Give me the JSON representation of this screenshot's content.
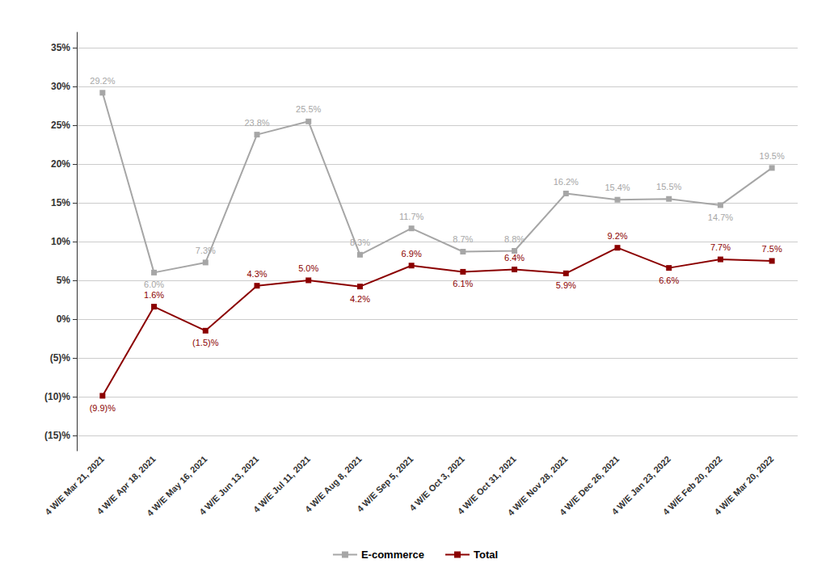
{
  "chart_data": {
    "type": "line",
    "categories": [
      "4 W/E Mar 21, 2021",
      "4 W/E Apr 18, 2021",
      "4 W/E May 16, 2021",
      "4 W/E Jun 13, 2021",
      "4 W/E Jul 11, 2021",
      "4 W/E Aug 8, 2021",
      "4 W/E Sep 5, 2021",
      "4 W/E Oct 3, 2021",
      "4 W/E Oct 31, 2021",
      "4 W/E Nov 28, 2021",
      "4 W/E Dec 26, 2021",
      "4 W/E Jan 23, 2022",
      "4 W/E Feb 20, 2022",
      "4 W/E Mar 20, 2022"
    ],
    "series": [
      {
        "name": "E-commerce",
        "color": "#a6a6a6",
        "marker": "square",
        "values": [
          29.2,
          6.0,
          7.3,
          23.8,
          25.5,
          8.3,
          11.7,
          8.7,
          8.8,
          16.2,
          15.4,
          15.5,
          14.7,
          19.5
        ],
        "value_labels": [
          "29.2%",
          "6.0%",
          "7.3%",
          "23.8%",
          "25.5%",
          "8.3%",
          "11.7%",
          "8.7%",
          "8.8%",
          "16.2%",
          "15.4%",
          "15.5%",
          "14.7%",
          "19.5%"
        ]
      },
      {
        "name": "Total",
        "color": "#8b0000",
        "marker": "square",
        "values": [
          -9.9,
          1.6,
          -1.5,
          4.3,
          5.0,
          4.2,
          6.9,
          6.1,
          6.4,
          5.9,
          9.2,
          6.6,
          7.7,
          7.5
        ],
        "value_labels": [
          "(9.9)%",
          "1.6%",
          "(1.5)%",
          "4.3%",
          "5.0%",
          "4.2%",
          "6.9%",
          "6.1%",
          "6.4%",
          "5.9%",
          "9.2%",
          "6.6%",
          "7.7%",
          "7.5%"
        ]
      }
    ],
    "ylim": [
      -17,
      37
    ],
    "yticks": [
      {
        "value": -15,
        "label": "(15)%"
      },
      {
        "value": -10,
        "label": "(10)%"
      },
      {
        "value": -5,
        "label": "(5)%"
      },
      {
        "value": 0,
        "label": "0%"
      },
      {
        "value": 5,
        "label": "5%"
      },
      {
        "value": 10,
        "label": "10%"
      },
      {
        "value": 15,
        "label": "15%"
      },
      {
        "value": 20,
        "label": "20%"
      },
      {
        "value": 25,
        "label": "25%"
      },
      {
        "value": 30,
        "label": "30%"
      },
      {
        "value": 35,
        "label": "35%"
      }
    ],
    "grid": true,
    "legend": "bottom",
    "data_labels": true
  }
}
